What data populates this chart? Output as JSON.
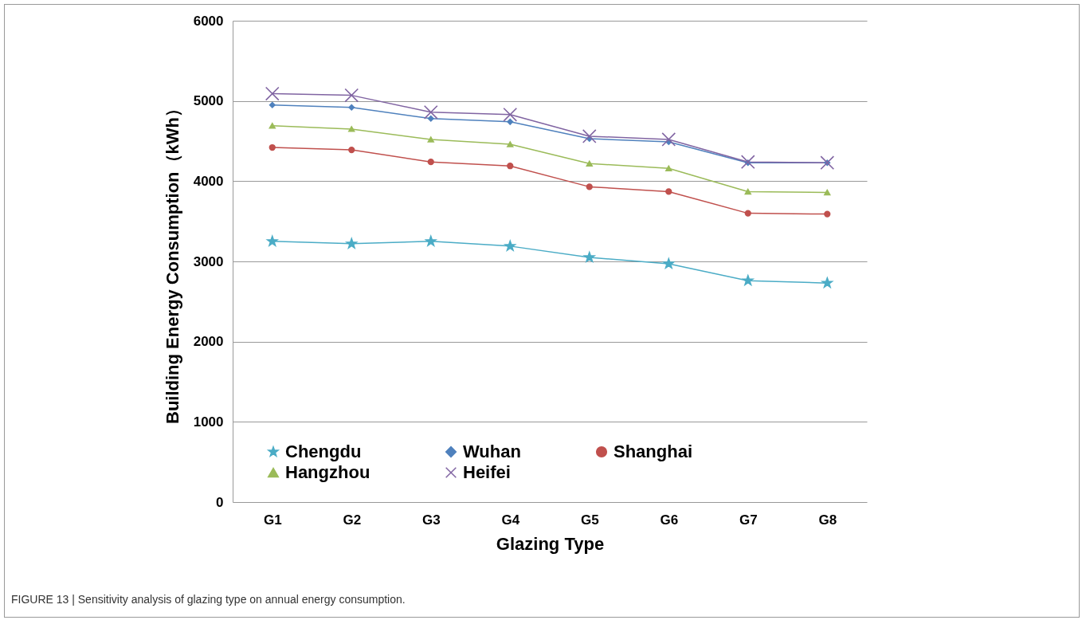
{
  "chart_data": {
    "type": "line",
    "xlabel": "Glazing Type",
    "ylabel": "Building Energy Consumption（kWh）",
    "categories": [
      "G1",
      "G2",
      "G3",
      "G4",
      "G5",
      "G6",
      "G7",
      "G8"
    ],
    "series": [
      {
        "name": "Chengdu",
        "color": "#4bacc6",
        "marker": "star",
        "values": [
          3250,
          3220,
          3250,
          3190,
          3050,
          2970,
          2760,
          2730
        ]
      },
      {
        "name": "Wuhan",
        "color": "#4f81bd",
        "marker": "diamond",
        "values": [
          4950,
          4920,
          4780,
          4740,
          4530,
          4490,
          4230,
          4230
        ]
      },
      {
        "name": "Shanghai",
        "color": "#c0504d",
        "marker": "circle",
        "values": [
          4420,
          4390,
          4240,
          4190,
          3930,
          3870,
          3600,
          3590
        ]
      },
      {
        "name": "Hangzhou",
        "color": "#9bbb59",
        "marker": "triangle",
        "values": [
          4690,
          4650,
          4520,
          4460,
          4220,
          4160,
          3870,
          3860
        ]
      },
      {
        "name": "Heifei",
        "color": "#8064a2",
        "marker": "cross",
        "values": [
          5090,
          5070,
          4860,
          4830,
          4560,
          4520,
          4240,
          4230
        ]
      }
    ],
    "ylim": [
      0,
      6000
    ],
    "yticks": [
      0,
      1000,
      2000,
      3000,
      4000,
      5000,
      6000
    ],
    "grid": "y",
    "legend": "bottom",
    "annotations": [
      "FIGURE 13 | Sensitivity analysis of glazing type on annual energy consumption."
    ]
  }
}
